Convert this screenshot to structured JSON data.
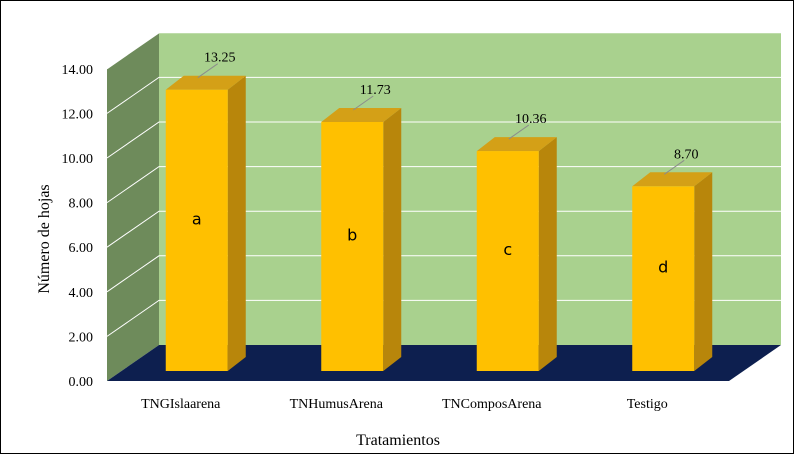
{
  "chart_data": {
    "type": "bar",
    "categories": [
      "TNGIslaarena",
      "TNHumusArena",
      "TNComposArena",
      "Testigo"
    ],
    "values": [
      13.25,
      11.73,
      10.36,
      8.7
    ],
    "value_labels": [
      "13.25",
      "11.73",
      "10.36",
      "8.70"
    ],
    "group_letters": [
      "a",
      "b",
      "c",
      "d"
    ],
    "xlabel": "Tratamientos",
    "ylabel": "Número de hojas",
    "ylim": [
      0,
      14
    ],
    "yticks": [
      "0.00",
      "2.00",
      "4.00",
      "6.00",
      "8.00",
      "10.00",
      "12.00",
      "14.00"
    ],
    "grid": true,
    "colors": {
      "bar_front": "#FFC000",
      "bar_side": "#B8860B",
      "bar_top": "#D4A017",
      "back_wall": "#A9D18E",
      "side_wall": "#6E8B5B",
      "floor": "#0D1F4F",
      "gridline": "#FFFFFF"
    }
  }
}
